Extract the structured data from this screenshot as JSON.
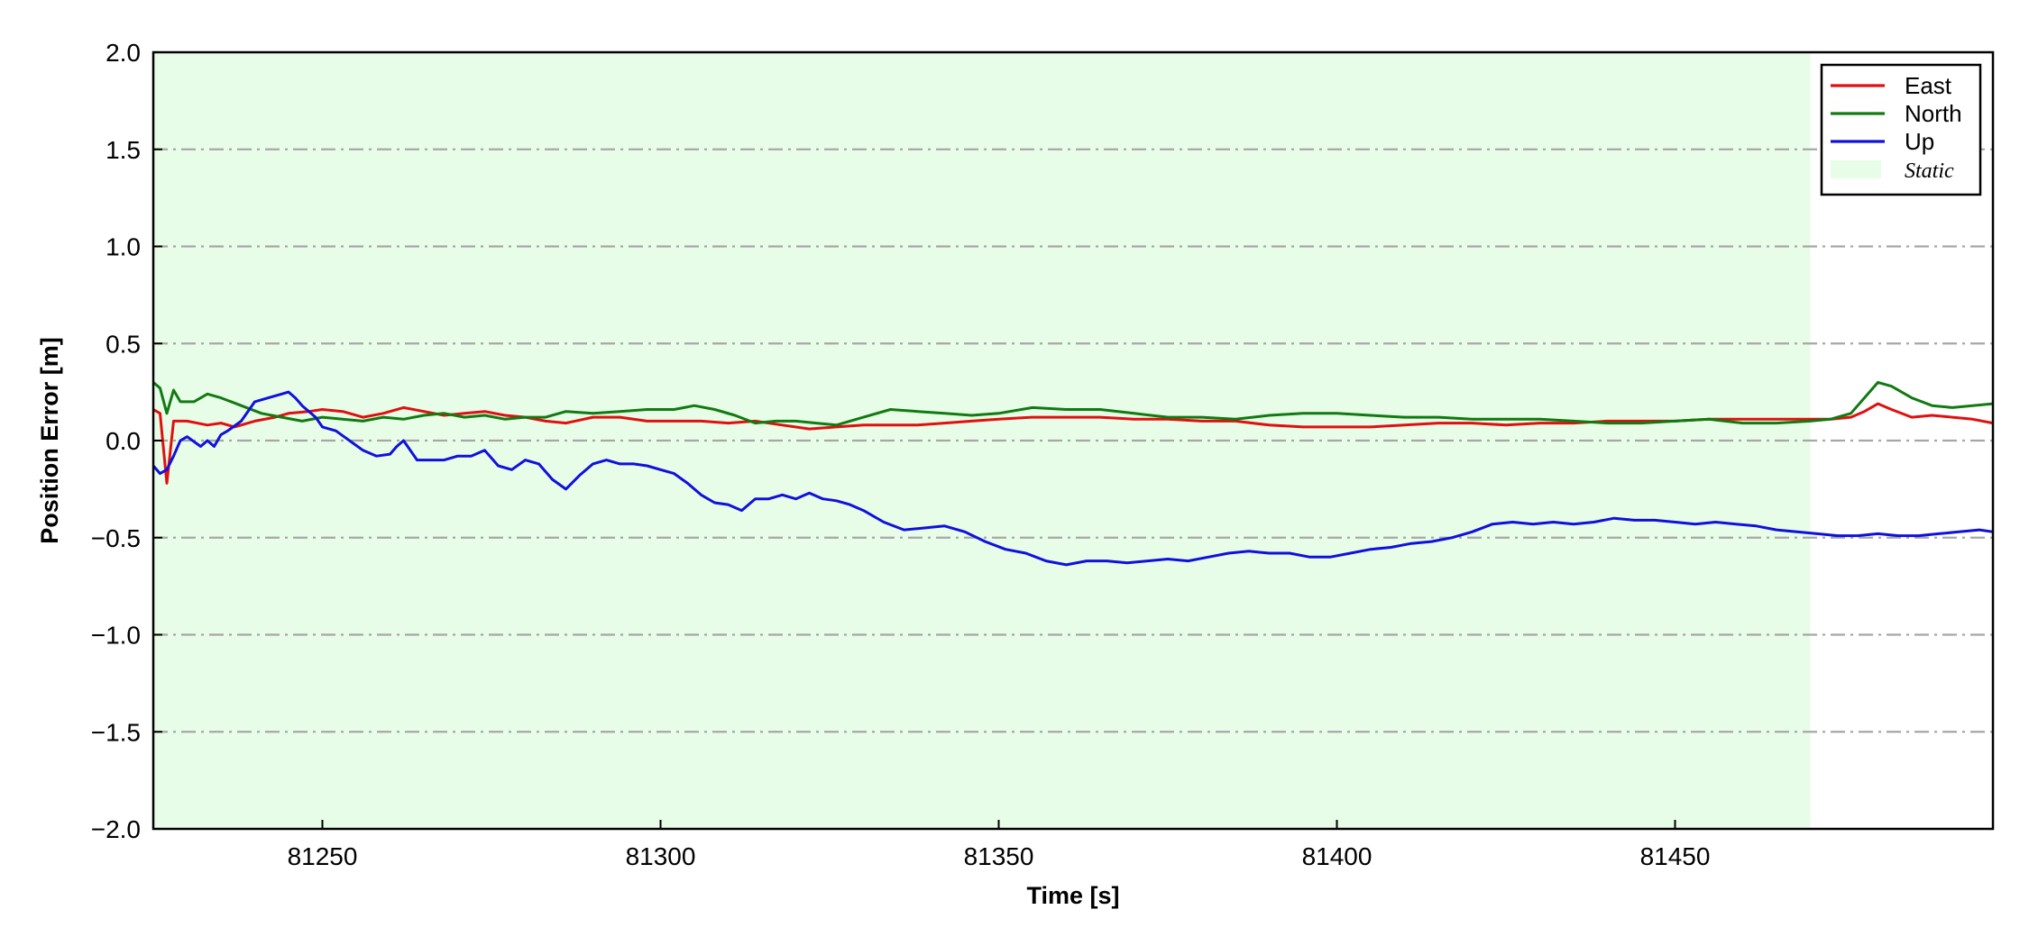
{
  "chart_data": {
    "type": "line",
    "title": "",
    "xlabel": "Time [s]",
    "ylabel": "Position Error [m]",
    "xlim": [
      81225,
      81497
    ],
    "ylim": [
      -2.0,
      2.0
    ],
    "xticks": [
      81250,
      81300,
      81350,
      81400,
      81450
    ],
    "xtick_labels": [
      "81250",
      "81300",
      "81350",
      "81400",
      "81450"
    ],
    "yticks": [
      -2.0,
      -1.5,
      -1.0,
      -0.5,
      0.0,
      0.5,
      1.0,
      1.5,
      2.0
    ],
    "ytick_labels": [
      "−2.0",
      "−1.5",
      "−1.0",
      "−0.5",
      "0.0",
      "0.5",
      "1.0",
      "1.5",
      "2.0"
    ],
    "grid": "horizontal dash-dot",
    "legend_position": "top-right",
    "static_region": {
      "label": "Static",
      "x_start": 81225,
      "x_end": 81470,
      "color": "#e8fde8"
    },
    "series": [
      {
        "name": "East",
        "color": "#e01010",
        "x": [
          81225,
          81226,
          81227,
          81228,
          81230,
          81233,
          81235,
          81237,
          81240,
          81243,
          81245,
          81248,
          81250,
          81253,
          81256,
          81259,
          81262,
          81265,
          81268,
          81271,
          81274,
          81277,
          81280,
          81283,
          81286,
          81290,
          81294,
          81298,
          81302,
          81306,
          81310,
          81314,
          81318,
          81322,
          81326,
          81330,
          81334,
          81338,
          81342,
          81346,
          81350,
          81355,
          81360,
          81365,
          81370,
          81375,
          81380,
          81385,
          81390,
          81395,
          81400,
          81405,
          81410,
          81415,
          81420,
          81425,
          81430,
          81435,
          81440,
          81445,
          81450,
          81455,
          81460,
          81465,
          81470,
          81473,
          81476,
          81478,
          81480,
          81482,
          81485,
          81488,
          81491,
          81494,
          81497
        ],
        "y": [
          0.16,
          0.14,
          -0.22,
          0.1,
          0.1,
          0.08,
          0.09,
          0.07,
          0.1,
          0.12,
          0.14,
          0.15,
          0.16,
          0.15,
          0.12,
          0.14,
          0.17,
          0.15,
          0.13,
          0.14,
          0.15,
          0.13,
          0.12,
          0.1,
          0.09,
          0.12,
          0.12,
          0.1,
          0.1,
          0.1,
          0.09,
          0.1,
          0.08,
          0.06,
          0.07,
          0.08,
          0.08,
          0.08,
          0.09,
          0.1,
          0.11,
          0.12,
          0.12,
          0.12,
          0.11,
          0.11,
          0.1,
          0.1,
          0.08,
          0.07,
          0.07,
          0.07,
          0.08,
          0.09,
          0.09,
          0.08,
          0.09,
          0.09,
          0.1,
          0.1,
          0.1,
          0.11,
          0.11,
          0.11,
          0.11,
          0.11,
          0.12,
          0.15,
          0.19,
          0.16,
          0.12,
          0.13,
          0.12,
          0.11,
          0.09
        ]
      },
      {
        "name": "North",
        "color": "#117a11",
        "x": [
          81225,
          81226,
          81227,
          81228,
          81229,
          81231,
          81233,
          81235,
          81238,
          81241,
          81244,
          81247,
          81250,
          81253,
          81256,
          81259,
          81262,
          81265,
          81268,
          81271,
          81274,
          81277,
          81280,
          81283,
          81286,
          81290,
          81294,
          81298,
          81302,
          81305,
          81308,
          81311,
          81314,
          81317,
          81320,
          81323,
          81326,
          81330,
          81334,
          81338,
          81342,
          81346,
          81350,
          81355,
          81360,
          81365,
          81370,
          81375,
          81380,
          81385,
          81390,
          81395,
          81400,
          81405,
          81410,
          81415,
          81420,
          81425,
          81430,
          81435,
          81440,
          81445,
          81450,
          81455,
          81460,
          81465,
          81470,
          81473,
          81476,
          81478,
          81480,
          81482,
          81485,
          81488,
          81491,
          81494,
          81497
        ],
        "y": [
          0.3,
          0.27,
          0.14,
          0.26,
          0.2,
          0.2,
          0.24,
          0.22,
          0.18,
          0.14,
          0.12,
          0.1,
          0.12,
          0.11,
          0.1,
          0.12,
          0.11,
          0.13,
          0.14,
          0.12,
          0.13,
          0.11,
          0.12,
          0.12,
          0.15,
          0.14,
          0.15,
          0.16,
          0.16,
          0.18,
          0.16,
          0.13,
          0.09,
          0.1,
          0.1,
          0.09,
          0.08,
          0.12,
          0.16,
          0.15,
          0.14,
          0.13,
          0.14,
          0.17,
          0.16,
          0.16,
          0.14,
          0.12,
          0.12,
          0.11,
          0.13,
          0.14,
          0.14,
          0.13,
          0.12,
          0.12,
          0.11,
          0.11,
          0.11,
          0.1,
          0.09,
          0.09,
          0.1,
          0.11,
          0.09,
          0.09,
          0.1,
          0.11,
          0.14,
          0.22,
          0.3,
          0.28,
          0.22,
          0.18,
          0.17,
          0.18,
          0.19
        ]
      },
      {
        "name": "Up",
        "color": "#1010dd",
        "x": [
          81225,
          81226,
          81227,
          81228,
          81229,
          81230,
          81232,
          81233,
          81234,
          81235,
          81236,
          81238,
          81240,
          81242,
          81244,
          81245,
          81246,
          81247,
          81249,
          81250,
          81252,
          81254,
          81256,
          81258,
          81260,
          81261,
          81262,
          81264,
          81266,
          81268,
          81270,
          81272,
          81274,
          81276,
          81278,
          81280,
          81282,
          81284,
          81286,
          81288,
          81290,
          81292,
          81294,
          81296,
          81298,
          81300,
          81302,
          81304,
          81306,
          81308,
          81310,
          81312,
          81314,
          81316,
          81318,
          81320,
          81322,
          81324,
          81326,
          81328,
          81330,
          81333,
          81336,
          81339,
          81342,
          81345,
          81348,
          81351,
          81354,
          81357,
          81360,
          81363,
          81366,
          81369,
          81372,
          81375,
          81378,
          81381,
          81384,
          81387,
          81390,
          81393,
          81396,
          81399,
          81402,
          81405,
          81408,
          81411,
          81414,
          81417,
          81420,
          81423,
          81426,
          81429,
          81432,
          81435,
          81438,
          81441,
          81444,
          81447,
          81450,
          81453,
          81456,
          81459,
          81462,
          81465,
          81468,
          81471,
          81474,
          81477,
          81480,
          81483,
          81486,
          81489,
          81492,
          81495,
          81497
        ],
        "y": [
          -0.13,
          -0.17,
          -0.15,
          -0.08,
          0.0,
          0.02,
          -0.03,
          0.0,
          -0.03,
          0.03,
          0.05,
          0.1,
          0.2,
          0.22,
          0.24,
          0.25,
          0.22,
          0.18,
          0.12,
          0.07,
          0.05,
          0.0,
          -0.05,
          -0.08,
          -0.07,
          -0.03,
          0.0,
          -0.1,
          -0.1,
          -0.1,
          -0.08,
          -0.08,
          -0.05,
          -0.13,
          -0.15,
          -0.1,
          -0.12,
          -0.2,
          -0.25,
          -0.18,
          -0.12,
          -0.1,
          -0.12,
          -0.12,
          -0.13,
          -0.15,
          -0.17,
          -0.22,
          -0.28,
          -0.32,
          -0.33,
          -0.36,
          -0.3,
          -0.3,
          -0.28,
          -0.3,
          -0.27,
          -0.3,
          -0.31,
          -0.33,
          -0.36,
          -0.42,
          -0.46,
          -0.45,
          -0.44,
          -0.47,
          -0.52,
          -0.56,
          -0.58,
          -0.62,
          -0.64,
          -0.62,
          -0.62,
          -0.63,
          -0.62,
          -0.61,
          -0.62,
          -0.6,
          -0.58,
          -0.57,
          -0.58,
          -0.58,
          -0.6,
          -0.6,
          -0.58,
          -0.56,
          -0.55,
          -0.53,
          -0.52,
          -0.5,
          -0.47,
          -0.43,
          -0.42,
          -0.43,
          -0.42,
          -0.43,
          -0.42,
          -0.4,
          -0.41,
          -0.41,
          -0.42,
          -0.43,
          -0.42,
          -0.43,
          -0.44,
          -0.46,
          -0.47,
          -0.48,
          -0.49,
          -0.49,
          -0.48,
          -0.49,
          -0.49,
          -0.48,
          -0.47,
          -0.46,
          -0.47
        ]
      }
    ]
  }
}
